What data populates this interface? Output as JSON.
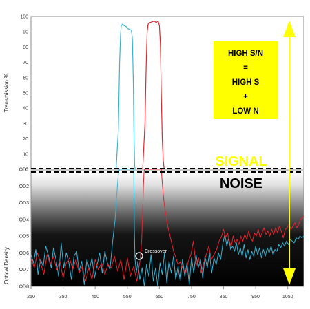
{
  "chart_data": {
    "type": "line",
    "x_range": [
      250,
      1100
    ],
    "x_ticks": [
      "250",
      "350",
      "450",
      "550",
      "650",
      "750",
      "850",
      "950",
      "1050"
    ],
    "top_panel": {
      "ylabel": "Transmission %",
      "ylim": [
        0,
        100
      ],
      "y_ticks": [
        "0",
        "10",
        "20",
        "30",
        "40",
        "50",
        "60",
        "70",
        "80",
        "90",
        "100"
      ]
    },
    "bottom_panel": {
      "ylabel": "Optical Density",
      "y_ticks": [
        "OD1",
        "OD2",
        "OD3",
        "OD4",
        "OD5",
        "OD6",
        "OD7",
        "OD8"
      ]
    },
    "annotations": {
      "box_lines": [
        "HIGH S/N",
        "=",
        "HIGH S",
        "+",
        "LOW N"
      ],
      "signal": "SIGNAL",
      "noise": "NOISE",
      "crossover": "Crossover"
    },
    "series": [
      {
        "color": "#33b5d6",
        "transmission": [
          [
            515,
            0
          ],
          [
            522,
            25
          ],
          [
            526,
            70
          ],
          [
            529,
            88
          ],
          [
            531,
            94
          ],
          [
            535,
            95
          ],
          [
            540,
            94
          ],
          [
            546,
            93.5
          ],
          [
            552,
            92
          ],
          [
            558,
            91.5
          ],
          [
            563,
            91
          ],
          [
            566,
            85
          ],
          [
            569,
            55
          ],
          [
            571,
            22
          ],
          [
            573,
            2
          ],
          [
            575,
            0
          ]
        ],
        "od": [
          [
            250,
            6.1
          ],
          [
            258,
            6.6
          ],
          [
            265,
            5.8
          ],
          [
            272,
            7.3
          ],
          [
            280,
            6.4
          ],
          [
            288,
            6.8
          ],
          [
            296,
            5.6
          ],
          [
            305,
            6.2
          ],
          [
            313,
            6.9
          ],
          [
            320,
            5.7
          ],
          [
            328,
            6.4
          ],
          [
            336,
            7.4
          ],
          [
            344,
            5.4
          ],
          [
            352,
            6.9
          ],
          [
            360,
            6.0
          ],
          [
            368,
            6.6
          ],
          [
            376,
            7.6
          ],
          [
            384,
            6.2
          ],
          [
            392,
            5.9
          ],
          [
            400,
            7.1
          ],
          [
            408,
            6.5
          ],
          [
            416,
            7.9
          ],
          [
            424,
            6.4
          ],
          [
            432,
            7.0
          ],
          [
            440,
            6.3
          ],
          [
            448,
            7.5
          ],
          [
            456,
            6.7
          ],
          [
            464,
            6.0
          ],
          [
            472,
            7.2
          ],
          [
            480,
            5.9
          ],
          [
            488,
            6.6
          ],
          [
            496,
            7.0
          ],
          [
            505,
            5.2
          ],
          [
            512,
            4.0
          ],
          [
            517,
            2.6
          ],
          [
            520,
            1.8
          ],
          [
            523,
            1.1
          ],
          [
            526,
            1.0
          ],
          [
            570,
            1.0
          ],
          [
            571,
            2.5
          ],
          [
            572,
            4.6
          ],
          [
            574,
            6.3
          ],
          [
            578,
            7.2
          ],
          [
            583,
            6.5
          ],
          [
            589,
            7.6
          ],
          [
            596,
            6.9
          ],
          [
            603,
            8.0
          ],
          [
            610,
            6.7
          ],
          [
            617,
            7.4
          ],
          [
            624,
            6.1
          ],
          [
            631,
            7.7
          ],
          [
            638,
            6.9
          ],
          [
            645,
            8.0
          ],
          [
            652,
            6.6
          ],
          [
            659,
            7.3
          ],
          [
            666,
            6.0
          ],
          [
            673,
            7.8
          ],
          [
            680,
            6.5
          ],
          [
            687,
            7.2
          ],
          [
            694,
            6.2
          ],
          [
            701,
            7.6
          ],
          [
            708,
            6.8
          ],
          [
            715,
            7.7
          ],
          [
            722,
            6.4
          ],
          [
            729,
            7.4
          ],
          [
            736,
            6.6
          ],
          [
            743,
            7.9
          ],
          [
            750,
            6.3
          ],
          [
            757,
            7.2
          ],
          [
            764,
            6.1
          ],
          [
            771,
            6.9
          ],
          [
            778,
            6.4
          ],
          [
            785,
            7.5
          ],
          [
            792,
            6.2
          ],
          [
            799,
            6.9
          ],
          [
            806,
            6.0
          ],
          [
            813,
            7.2
          ],
          [
            820,
            6.3
          ],
          [
            827,
            6.7
          ],
          [
            834,
            6.0
          ],
          [
            841,
            6.4
          ],
          [
            848,
            5.4
          ],
          [
            854,
            4.9
          ],
          [
            860,
            5.6
          ],
          [
            866,
            5.1
          ],
          [
            872,
            5.8
          ],
          [
            878,
            5.6
          ],
          [
            884,
            5.9
          ],
          [
            890,
            5.4
          ],
          [
            896,
            6.1
          ],
          [
            902,
            5.7
          ],
          [
            908,
            6.2
          ],
          [
            914,
            5.5
          ],
          [
            920,
            6.3
          ],
          [
            926,
            5.8
          ],
          [
            932,
            6.4
          ],
          [
            938,
            5.9
          ],
          [
            944,
            6.2
          ],
          [
            950,
            5.6
          ],
          [
            956,
            6.1
          ],
          [
            962,
            5.7
          ],
          [
            968,
            6.3
          ],
          [
            974,
            5.8
          ],
          [
            980,
            6.2
          ],
          [
            986,
            5.7
          ],
          [
            992,
            6.0
          ],
          [
            998,
            5.6
          ],
          [
            1004,
            6.1
          ],
          [
            1010,
            5.8
          ],
          [
            1016,
            5.9
          ],
          [
            1022,
            5.5
          ],
          [
            1028,
            5.7
          ],
          [
            1034,
            5.4
          ],
          [
            1040,
            5.6
          ],
          [
            1046,
            5.3
          ],
          [
            1052,
            5.5
          ],
          [
            1058,
            5.2
          ],
          [
            1064,
            5.3
          ],
          [
            1070,
            5.4
          ],
          [
            1076,
            5.1
          ],
          [
            1082,
            5.2
          ],
          [
            1088,
            5.0
          ],
          [
            1094,
            5.1
          ],
          [
            1100,
            5.0
          ]
        ]
      },
      {
        "color": "#e8232d",
        "transmission": [
          [
            598,
            0
          ],
          [
            605,
            30
          ],
          [
            609,
            70
          ],
          [
            612,
            90
          ],
          [
            615,
            95
          ],
          [
            620,
            96
          ],
          [
            627,
            96.5
          ],
          [
            634,
            97
          ],
          [
            640,
            96
          ],
          [
            646,
            97
          ],
          [
            650,
            94
          ],
          [
            653,
            82
          ],
          [
            656,
            50
          ],
          [
            659,
            20
          ],
          [
            662,
            6
          ],
          [
            665,
            0
          ]
        ],
        "od": [
          [
            250,
            6.3
          ],
          [
            260,
            6.9
          ],
          [
            270,
            6.0
          ],
          [
            280,
            6.6
          ],
          [
            290,
            7.3
          ],
          [
            300,
            6.1
          ],
          [
            310,
            6.7
          ],
          [
            320,
            6.2
          ],
          [
            330,
            7.0
          ],
          [
            340,
            6.5
          ],
          [
            350,
            7.5
          ],
          [
            360,
            6.6
          ],
          [
            370,
            6.3
          ],
          [
            380,
            7.0
          ],
          [
            390,
            6.4
          ],
          [
            400,
            7.2
          ],
          [
            410,
            6.8
          ],
          [
            420,
            7.7
          ],
          [
            430,
            6.9
          ],
          [
            440,
            7.6
          ],
          [
            450,
            6.4
          ],
          [
            460,
            7.0
          ],
          [
            470,
            6.6
          ],
          [
            480,
            7.3
          ],
          [
            490,
            6.7
          ],
          [
            500,
            6.9
          ],
          [
            510,
            6.2
          ],
          [
            520,
            7.1
          ],
          [
            530,
            6.4
          ],
          [
            540,
            7.6
          ],
          [
            550,
            6.3
          ],
          [
            560,
            7.4
          ],
          [
            570,
            6.8
          ],
          [
            580,
            7.7
          ],
          [
            590,
            6.4
          ],
          [
            595,
            5.2
          ],
          [
            598,
            3.5
          ],
          [
            600,
            2.0
          ],
          [
            602,
            1.2
          ],
          [
            604,
            1.0
          ],
          [
            656,
            1.0
          ],
          [
            659,
            1.8
          ],
          [
            662,
            2.5
          ],
          [
            666,
            3.2
          ],
          [
            670,
            3.7
          ],
          [
            676,
            4.4
          ],
          [
            682,
            4.9
          ],
          [
            688,
            5.4
          ],
          [
            694,
            5.9
          ],
          [
            700,
            6.2
          ],
          [
            708,
            6.7
          ],
          [
            716,
            6.5
          ],
          [
            724,
            7.0
          ],
          [
            732,
            7.2
          ],
          [
            740,
            6.5
          ],
          [
            748,
            6.1
          ],
          [
            756,
            5.3
          ],
          [
            764,
            6.8
          ],
          [
            772,
            6.3
          ],
          [
            780,
            7.2
          ],
          [
            788,
            6.6
          ],
          [
            796,
            6.1
          ],
          [
            804,
            5.6
          ],
          [
            812,
            6.4
          ],
          [
            820,
            6.1
          ],
          [
            828,
            5.8
          ],
          [
            836,
            5.3
          ],
          [
            844,
            5.0
          ],
          [
            850,
            4.6
          ],
          [
            856,
            5.1
          ],
          [
            862,
            4.8
          ],
          [
            868,
            5.3
          ],
          [
            874,
            5.6
          ],
          [
            880,
            5.0
          ],
          [
            886,
            5.4
          ],
          [
            892,
            5.2
          ],
          [
            898,
            5.5
          ],
          [
            904,
            5.0
          ],
          [
            910,
            5.3
          ],
          [
            916,
            4.9
          ],
          [
            922,
            5.2
          ],
          [
            928,
            4.7
          ],
          [
            934,
            5.1
          ],
          [
            940,
            5.3
          ],
          [
            946,
            4.8
          ],
          [
            952,
            5.0
          ],
          [
            958,
            4.6
          ],
          [
            964,
            5.1
          ],
          [
            970,
            4.8
          ],
          [
            976,
            4.5
          ],
          [
            982,
            4.9
          ],
          [
            988,
            4.7
          ],
          [
            994,
            5.0
          ],
          [
            1000,
            4.6
          ],
          [
            1006,
            4.9
          ],
          [
            1012,
            4.5
          ],
          [
            1018,
            4.8
          ],
          [
            1024,
            4.4
          ],
          [
            1030,
            4.7
          ],
          [
            1036,
            5.1
          ],
          [
            1042,
            4.6
          ],
          [
            1048,
            4.5
          ],
          [
            1054,
            4.3
          ],
          [
            1060,
            4.6
          ],
          [
            1066,
            4.4
          ],
          [
            1072,
            4.2
          ],
          [
            1078,
            4.5
          ],
          [
            1084,
            4.3
          ],
          [
            1090,
            4.0
          ],
          [
            1096,
            3.9
          ],
          [
            1100,
            3.8
          ]
        ]
      }
    ],
    "colors": {
      "highlight_box": "#ffff00",
      "signal_text": "#ffff00",
      "arrow": "#ffff00",
      "noise_text": "#000000",
      "frame": "#8c8c8c"
    }
  }
}
